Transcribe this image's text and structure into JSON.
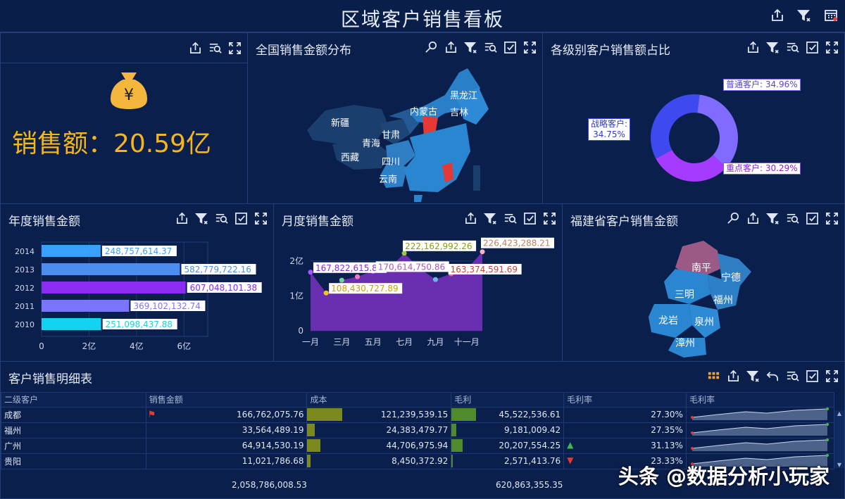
{
  "header": {
    "title": "区域客户销售看板"
  },
  "kpi": {
    "money_symbol": "¥",
    "label": "销售额：20.59亿"
  },
  "map_china": {
    "title": "全国销售金额分布",
    "labels": [
      "新疆",
      "西藏",
      "青海",
      "甘肃",
      "四川",
      "云南",
      "内蒙古",
      "黑龙江",
      "吉林"
    ]
  },
  "donut": {
    "title": "各级别客户销售额占比",
    "segments": [
      {
        "name": "普通客户",
        "label": "普通客户: 34.96%",
        "value": 34.96,
        "color": "#7f6bff"
      },
      {
        "name": "重点客户",
        "label": "重点客户: 30.29%",
        "value": 30.29,
        "color": "#a43bff"
      },
      {
        "name": "战略客户",
        "label": "战略客户:\n34.75%",
        "value": 34.75,
        "color": "#3f49f0"
      }
    ]
  },
  "annual": {
    "title": "年度销售金额"
  },
  "monthly": {
    "title": "月度销售金额"
  },
  "fujian": {
    "title": "福建省客户销售金额",
    "labels": [
      "南平",
      "宁德",
      "三明",
      "福州",
      "龙岩",
      "泉州",
      "漳州"
    ]
  },
  "table": {
    "title": "客户销售明细表",
    "headers": [
      "二级客户",
      "销售金额",
      "成本",
      "毛利",
      "毛利率",
      "毛利率"
    ],
    "rows": [
      {
        "city": "成都",
        "sales": "166,762,075.76",
        "cost": "121,239,539.15",
        "profit": "45,522,536.61",
        "rate": "27.30%",
        "flag": "flag",
        "arrow": "",
        "cost_bar": 0.24,
        "profit_bar": 0.22
      },
      {
        "city": "福州",
        "sales": "33,564,489.19",
        "cost": "24,383,479.77",
        "profit": "9,181,009.42",
        "rate": "27.35%",
        "flag": "",
        "arrow": "",
        "cost_bar": 0.05,
        "profit_bar": 0.04
      },
      {
        "city": "广州",
        "sales": "64,914,530.19",
        "cost": "44,706,975.94",
        "profit": "20,207,554.25",
        "rate": "31.13%",
        "flag": "",
        "arrow": "up",
        "cost_bar": 0.09,
        "profit_bar": 0.1
      },
      {
        "city": "贵阳",
        "sales": "11,021,786.68",
        "cost": "8,450,372.92",
        "profit": "2,571,413.76",
        "rate": "23.33%",
        "flag": "",
        "arrow": "down",
        "cost_bar": 0.02,
        "profit_bar": 0.01
      }
    ],
    "totals": {
      "sales": "2,058,786,008.53",
      "profit": "620,863,355.35"
    }
  },
  "watermark": "头条 @数据分析小玩家",
  "chart_data": [
    {
      "type": "bar",
      "orientation": "horizontal",
      "categories": [
        "2014",
        "2013",
        "2012",
        "2011",
        "2010"
      ],
      "values": [
        248757614.37,
        582779722.16,
        607048101.38,
        369102132.74,
        251098437.88
      ],
      "labels": [
        "248,757,614.37",
        "582,779,722.16",
        "607,048,101.38",
        "369,102,132.74",
        "251,098,437.88"
      ],
      "colors": [
        "#3aa0ff",
        "#4b8df0",
        "#8a2cf2",
        "#7a74ff",
        "#13d3f0"
      ],
      "xlim": [
        0,
        700000000
      ],
      "xticks": [
        "0",
        "2亿",
        "4亿",
        "6亿"
      ]
    },
    {
      "type": "area",
      "x": [
        "一月",
        "二月",
        "三月",
        "四月",
        "五月",
        "六月",
        "七月",
        "八月",
        "九月",
        "十月",
        "十一月",
        "十二月"
      ],
      "xticks": [
        "一月",
        "三月",
        "五月",
        "七月",
        "九月",
        "十一月"
      ],
      "values": [
        167822615.8,
        108430727.89,
        145000000,
        155000000,
        170614750.86,
        176000000,
        222162992.26,
        178000000,
        147000000,
        163374591.69,
        176000000,
        226423288.21
      ],
      "labels": {
        "0": "167,822,615.80",
        "1": "108,430,727.89",
        "4": "170,614,750.86",
        "6": "222,162,992.26",
        "9": "163,374,591.69",
        "11": "226,423,288.21"
      },
      "ylim": [
        0,
        250000000
      ],
      "yticks": [
        "0",
        "1亿",
        "2亿"
      ],
      "color": "#6a2fb0"
    }
  ]
}
